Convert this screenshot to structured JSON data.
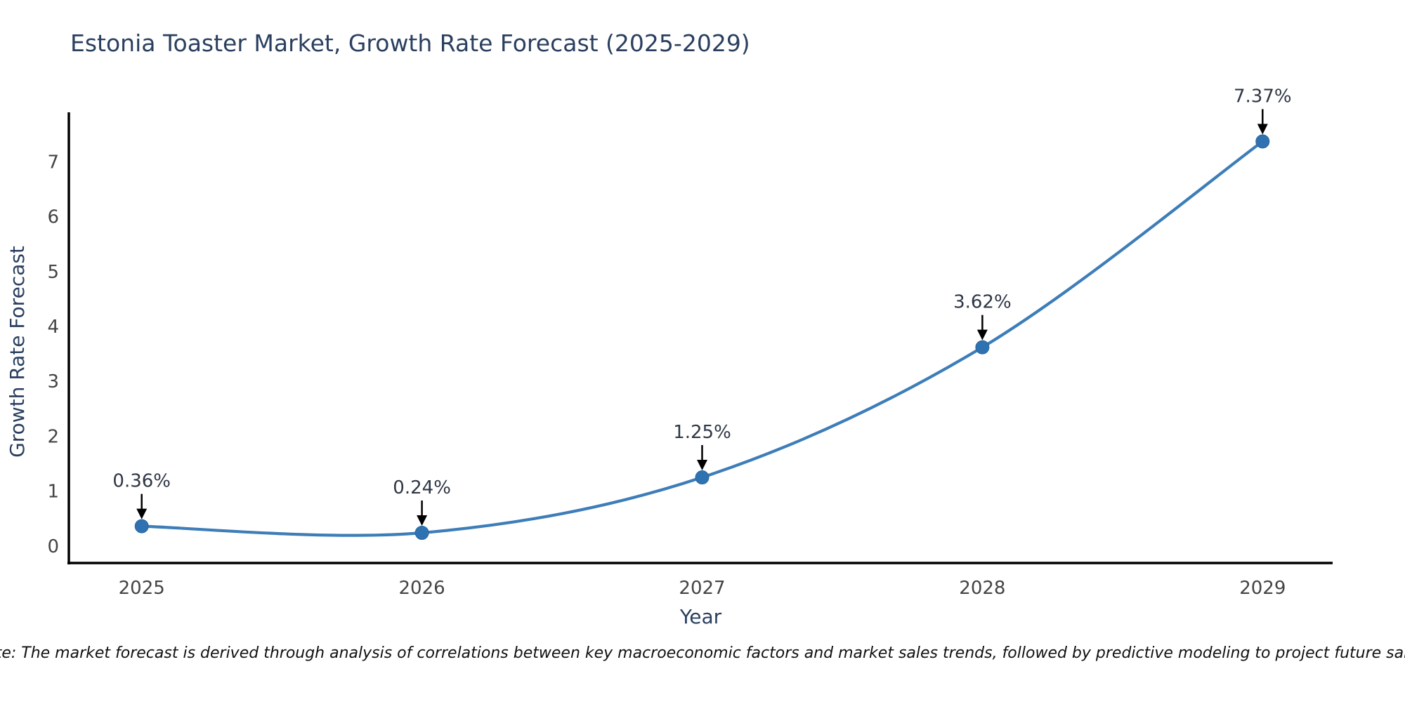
{
  "title": {
    "text": "Estonia Toaster Market, Growth Rate Forecast (2025-2029)",
    "color": "#2a3f5f"
  },
  "note": {
    "text": "Note: The market forecast is derived through analysis of correlations between key macroeconomic factors and market sales trends, followed by predictive modeling to project future sales."
  },
  "chart_data": {
    "type": "line",
    "title": "Estonia Toaster Market, Growth Rate Forecast (2025-2029)",
    "xlabel": "Year",
    "ylabel": "Growth Rate Forecast",
    "x": [
      2025,
      2026,
      2027,
      2028,
      2029
    ],
    "series": [
      {
        "name": "Growth Rate Forecast",
        "values": [
          0.36,
          0.24,
          1.25,
          3.62,
          7.37
        ]
      }
    ],
    "point_labels": [
      "0.36%",
      "0.24%",
      "1.25%",
      "3.62%",
      "7.37%"
    ],
    "xticks": [
      "2025",
      "2026",
      "2027",
      "2028",
      "2029"
    ],
    "yticks": [
      0,
      1,
      2,
      3,
      4,
      5,
      6,
      7
    ],
    "xlim": [
      2024.74,
      2029.25
    ],
    "ylim": [
      -0.31,
      7.9
    ],
    "grid": false,
    "legend": false,
    "smooth": true,
    "annotations": "arrow-labels-above-points",
    "line_color": "#3d7db8",
    "marker_color": "#2f72b2",
    "marker_edge_color": "#28669f",
    "axis_color": "#000000",
    "tick_color": "#444444",
    "label_color": "#2a3f5f",
    "annotation_color": "#2f3745"
  }
}
